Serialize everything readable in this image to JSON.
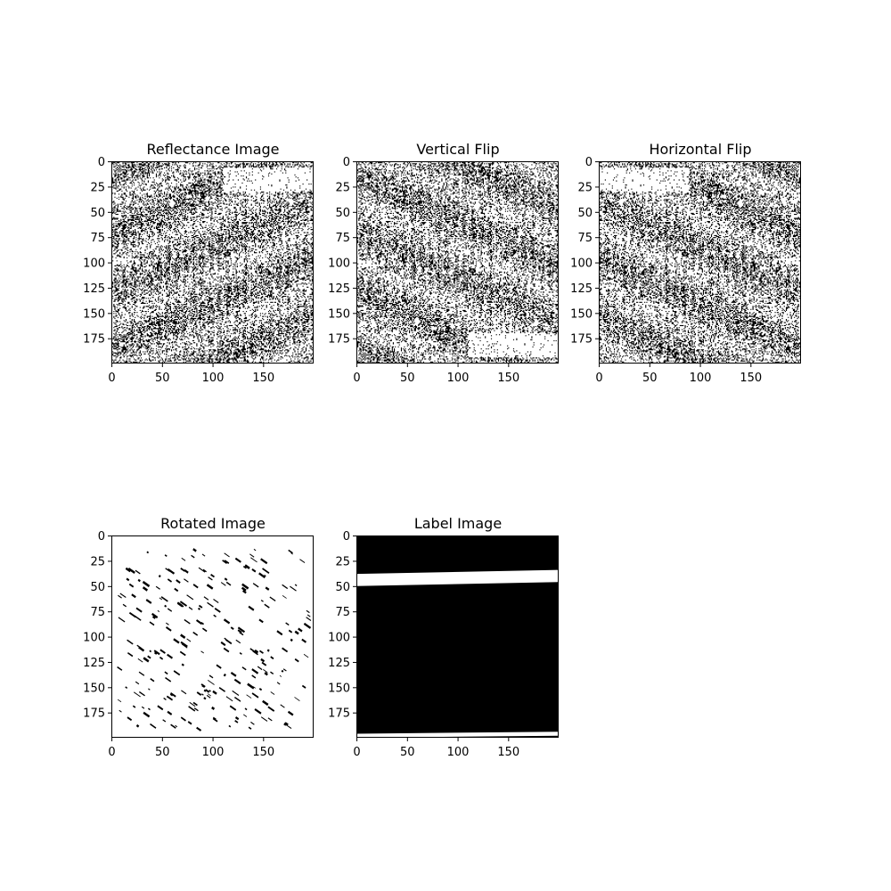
{
  "chart_data": [
    {
      "type": "heatmap",
      "title": "Reflectance Image",
      "colormap": "binary (black / white)",
      "xlim": [
        0,
        199
      ],
      "ylim": [
        199,
        0
      ],
      "xticks": [
        0,
        50,
        100,
        150
      ],
      "yticks": [
        0,
        25,
        50,
        75,
        100,
        125,
        150,
        175
      ],
      "texture": "dense noise with vertical black streaks",
      "texture_code": "noise",
      "light_patch": {
        "x": [
          110,
          200
        ],
        "y": [
          5,
          30
        ]
      },
      "transform": "none"
    },
    {
      "type": "heatmap",
      "title": "Vertical Flip",
      "colormap": "binary (black / white)",
      "xlim": [
        0,
        199
      ],
      "ylim": [
        199,
        0
      ],
      "xticks": [
        0,
        50,
        100,
        150
      ],
      "yticks": [
        0,
        25,
        50,
        75,
        100,
        125,
        150,
        175
      ],
      "texture": "dense noise with vertical black streaks",
      "texture_code": "noise",
      "light_patch": {
        "x": [
          110,
          200
        ],
        "y": [
          170,
          195
        ]
      },
      "transform": "vertical flip of reflectance image"
    },
    {
      "type": "heatmap",
      "title": "Horizontal Flip",
      "colormap": "binary (black / white)",
      "xlim": [
        0,
        199
      ],
      "ylim": [
        199,
        0
      ],
      "xticks": [
        0,
        50,
        100,
        150
      ],
      "yticks": [
        0,
        25,
        50,
        75,
        100,
        125,
        150,
        175
      ],
      "texture": "dense noise with vertical black streaks",
      "texture_code": "noise",
      "light_patch": {
        "x": [
          0,
          90
        ],
        "y": [
          5,
          30
        ]
      },
      "transform": "horizontal flip of reflectance image"
    },
    {
      "type": "heatmap",
      "title": "Rotated Image",
      "colormap": "binary (black / white)",
      "xlim": [
        0,
        199
      ],
      "ylim": [
        199,
        0
      ],
      "xticks": [
        0,
        50,
        100,
        150
      ],
      "yticks": [
        0,
        25,
        50,
        75,
        100,
        125,
        150,
        175
      ],
      "texture": "mostly white with sparse diagonal black strokes",
      "texture_code": "sparse",
      "transform": "rotated"
    },
    {
      "type": "heatmap",
      "title": "Label Image",
      "colormap": "binary (black / white)",
      "xlim": [
        0,
        199
      ],
      "ylim": [
        199,
        0
      ],
      "xticks": [
        0,
        50,
        100,
        150
      ],
      "yticks": [
        0,
        25,
        50,
        75,
        100,
        125,
        150,
        175
      ],
      "texture": "solid black with white horizontal bands",
      "texture_code": "label",
      "background_value": "black",
      "white_bands": [
        {
          "y_left_top": 38,
          "y_left_bottom": 50,
          "y_right_top": 34,
          "y_right_bottom": 46
        },
        {
          "y_left_top": 196,
          "y_left_bottom": 200,
          "y_right_top": 194,
          "y_right_bottom": 198
        }
      ]
    }
  ]
}
